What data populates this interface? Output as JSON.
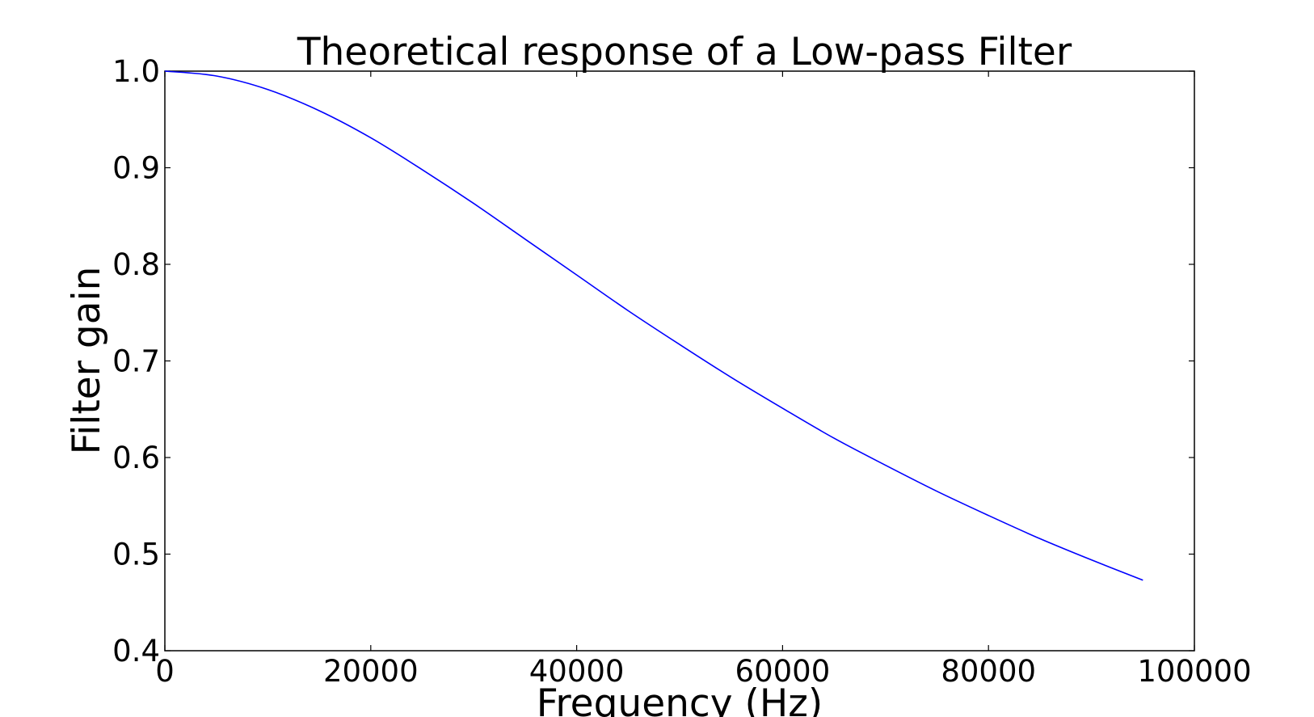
{
  "chart_data": {
    "type": "line",
    "title": "Theoretical response of a Low-pass Filter",
    "xlabel": "Frequency (Hz)",
    "ylabel": "Filter gain",
    "xlim": [
      0,
      100000
    ],
    "ylim": [
      0.4,
      1.0
    ],
    "x_ticks": [
      0,
      20000,
      40000,
      60000,
      80000,
      100000
    ],
    "x_tick_labels": [
      "0",
      "20000",
      "40000",
      "60000",
      "80000",
      "100000"
    ],
    "y_ticks": [
      0.4,
      0.5,
      0.6,
      0.7,
      0.8,
      0.9,
      1.0
    ],
    "y_tick_labels": [
      "0.4",
      "0.5",
      "0.6",
      "0.7",
      "0.8",
      "0.9",
      "1.0"
    ],
    "grid": false,
    "series": [
      {
        "color": "#0000ff",
        "x": [
          0,
          5000,
          10000,
          15000,
          20000,
          25000,
          30000,
          35000,
          40000,
          45000,
          50000,
          55000,
          60000,
          65000,
          70000,
          75000,
          80000,
          85000,
          90000,
          95000
        ],
        "y": [
          1.0,
          0.995,
          0.981,
          0.959,
          0.931,
          0.898,
          0.863,
          0.826,
          0.789,
          0.752,
          0.717,
          0.683,
          0.651,
          0.62,
          0.592,
          0.565,
          0.54,
          0.516,
          0.494,
          0.473
        ]
      }
    ]
  }
}
